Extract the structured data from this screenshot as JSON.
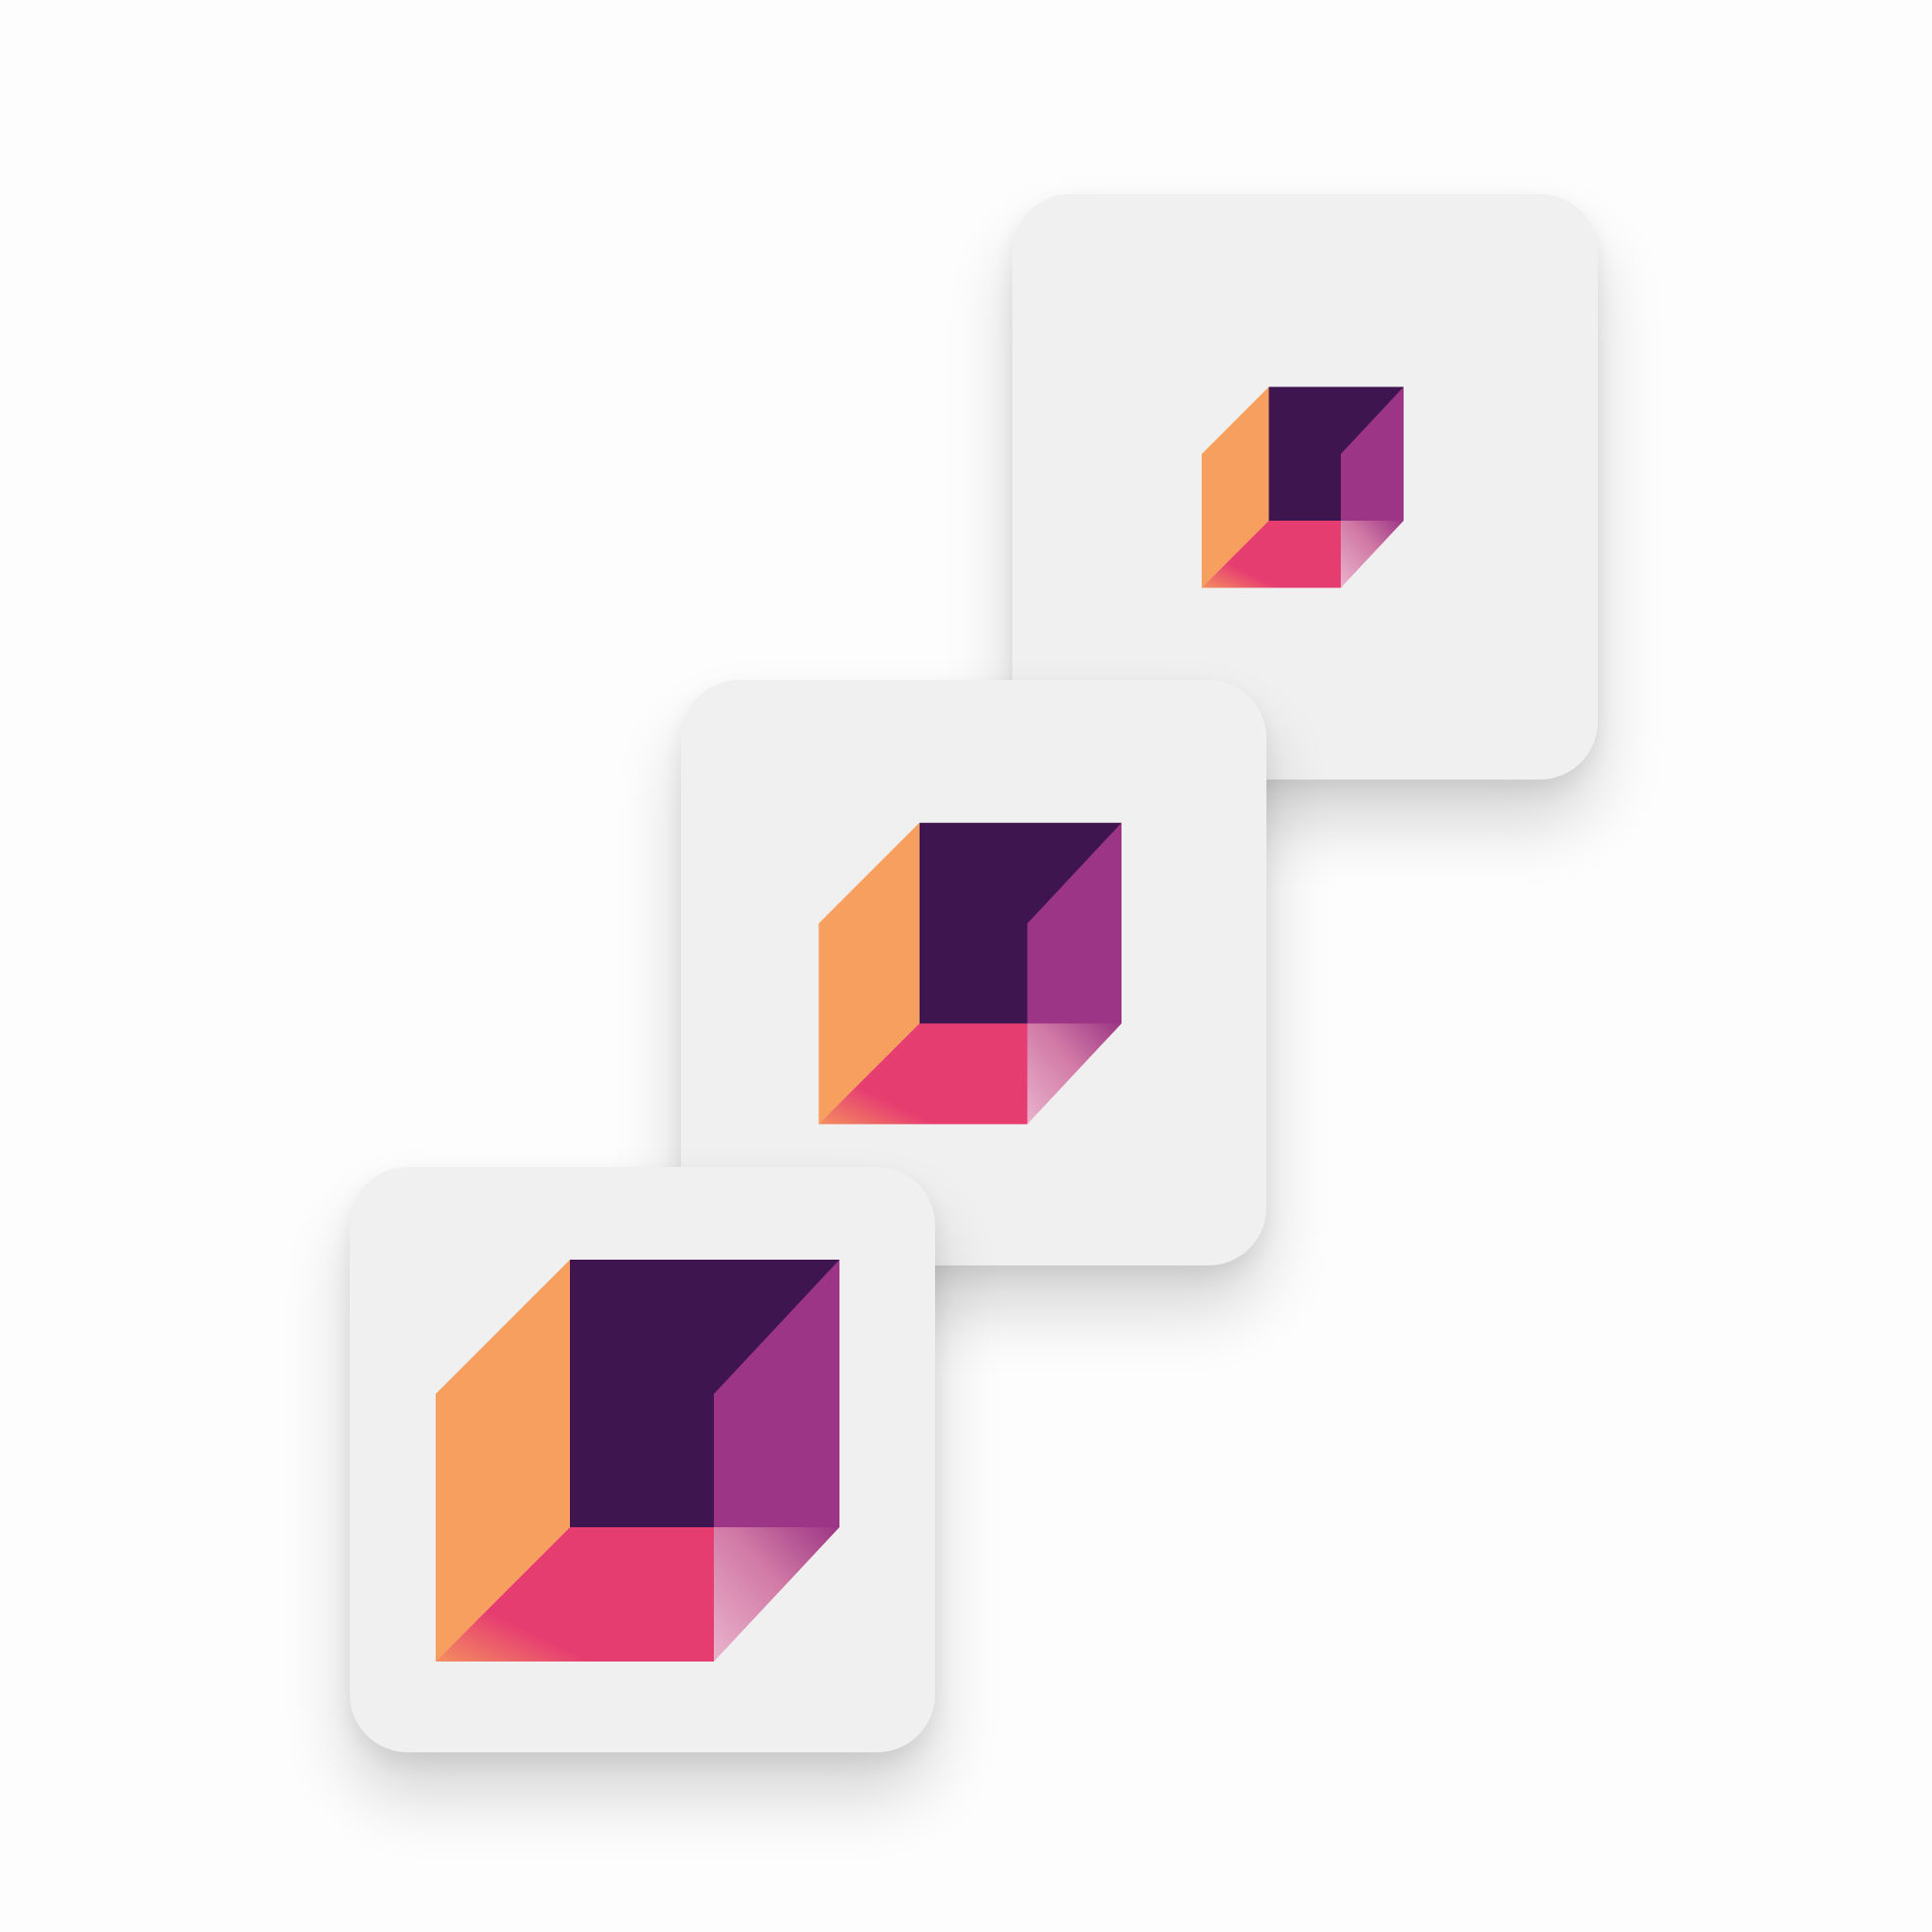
{
  "icon": {
    "name": "isometric-cube-icon",
    "variants": [
      "large",
      "medium",
      "small"
    ]
  },
  "colors": {
    "background": "#fdfdfd",
    "card": "#f0f0f0",
    "back_face": "#3f1550",
    "left_face": "#f79f5e",
    "right_face": "#9c3585",
    "bottom_face": "#e63d71",
    "corner_face_light": "#d98aae"
  }
}
